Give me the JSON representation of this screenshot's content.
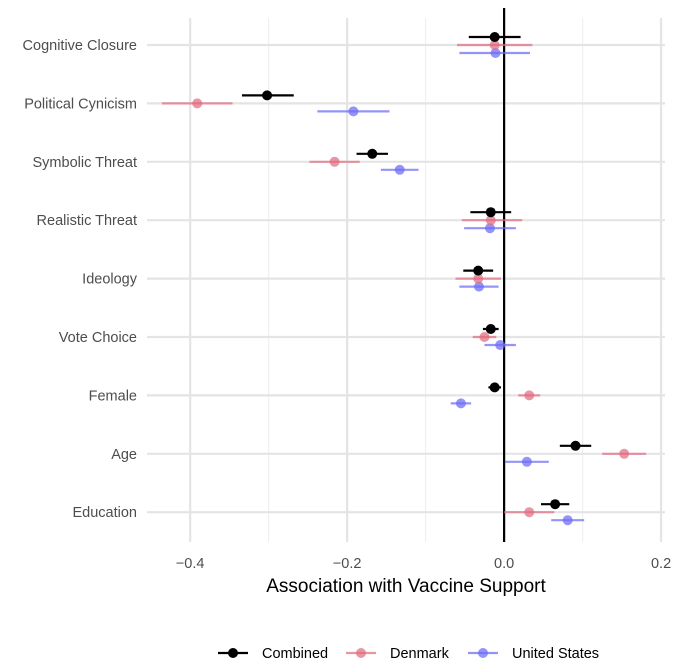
{
  "chart_data": {
    "type": "scatter",
    "subtype": "coefficient-plot-with-confidence-intervals",
    "title": "",
    "xlabel": "Association with Vaccine Support",
    "ylabel": "",
    "xlim": [
      -0.455,
      0.205
    ],
    "xticks": [
      -0.4,
      -0.2,
      0.0,
      0.2
    ],
    "xtick_labels": [
      "−0.4",
      "−0.2",
      "0.0",
      "0.2"
    ],
    "grid": true,
    "zero_line": true,
    "legend_position": "bottom",
    "categories": [
      "Cognitive Closure",
      "Political Cynicism",
      "Symbolic Threat",
      "Realistic Threat",
      "Ideology",
      "Vote Choice",
      "Female",
      "Age",
      "Education"
    ],
    "series": [
      {
        "name": "Combined",
        "color": "#000000",
        "estimates": [
          -0.012,
          -0.302,
          -0.168,
          -0.017,
          -0.033,
          -0.017,
          -0.012,
          0.091,
          0.065
        ],
        "ci_low": [
          -0.045,
          -0.334,
          -0.188,
          -0.043,
          -0.052,
          -0.027,
          -0.02,
          0.071,
          0.047
        ],
        "ci_high": [
          0.021,
          -0.268,
          -0.148,
          0.009,
          -0.014,
          -0.007,
          -0.004,
          0.111,
          0.083
        ]
      },
      {
        "name": "Denmark",
        "color": "#e06c80",
        "estimates": [
          -0.012,
          -0.391,
          -0.216,
          -0.017,
          -0.033,
          -0.025,
          0.032,
          0.153,
          0.032
        ],
        "ci_low": [
          -0.06,
          -0.436,
          -0.248,
          -0.054,
          -0.062,
          -0.04,
          0.018,
          0.125,
          0.0
        ],
        "ci_high": [
          0.036,
          -0.346,
          -0.184,
          0.023,
          -0.004,
          -0.01,
          0.046,
          0.181,
          0.064
        ]
      },
      {
        "name": "United States",
        "color": "#6b6bf5",
        "estimates": [
          -0.011,
          -0.192,
          -0.133,
          -0.018,
          -0.032,
          -0.005,
          -0.055,
          0.029,
          0.081
        ],
        "ci_low": [
          -0.057,
          -0.238,
          -0.157,
          -0.051,
          -0.057,
          -0.025,
          -0.068,
          0.001,
          0.06
        ],
        "ci_high": [
          0.033,
          -0.146,
          -0.109,
          0.015,
          -0.007,
          0.015,
          -0.042,
          0.057,
          0.102
        ]
      }
    ]
  }
}
